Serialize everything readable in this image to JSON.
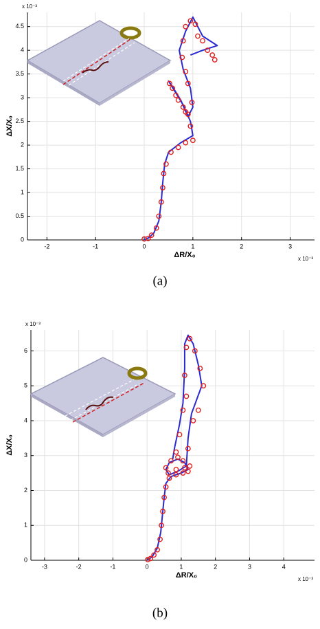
{
  "chart_data": [
    {
      "type": "line",
      "caption": "(a)",
      "xlabel": "ΔR/X₀",
      "ylabel": "ΔX/X₀",
      "x_exponent": "x 10⁻³",
      "y_exponent": "x 10⁻³",
      "xlim": [
        -2.4,
        3.5
      ],
      "ylim": [
        0,
        4.8
      ],
      "xticks": [
        -2,
        -1,
        0,
        1,
        2,
        3
      ],
      "yticks": [
        0,
        0.5,
        1,
        1.5,
        2,
        2.5,
        3,
        3.5,
        4,
        4.5
      ],
      "grid": true,
      "series": [
        {
          "mode": "line",
          "color": "#2a2ad0",
          "x": [
            0,
            0.1,
            0.2,
            0.3,
            0.35,
            0.38,
            0.42,
            0.5,
            0.75,
            1.0,
            0.95,
            0.8,
            0.62,
            0.5,
            0.6,
            0.75,
            0.9,
            1.0,
            0.95,
            0.8,
            0.72,
            0.85,
            1.0,
            1.1,
            1.2,
            1.5,
            1.2,
            0.95
          ],
          "values": [
            0,
            0.05,
            0.15,
            0.4,
            0.8,
            1.2,
            1.6,
            1.85,
            2.05,
            2.2,
            2.5,
            2.85,
            3.15,
            3.35,
            3.2,
            2.95,
            2.6,
            2.8,
            3.2,
            3.6,
            4.0,
            4.4,
            4.7,
            4.5,
            4.3,
            4.1,
            4.0,
            3.9
          ]
        },
        {
          "mode": "markers",
          "color": "#e02020",
          "x": [
            0,
            0.08,
            0.15,
            0.25,
            0.3,
            0.35,
            0.38,
            0.4,
            0.45,
            0.55,
            0.7,
            0.85,
            1.0,
            0.95,
            0.85,
            0.7,
            0.58,
            0.52,
            0.65,
            0.8,
            0.9,
            0.98,
            0.9,
            0.85,
            0.78,
            0.8,
            0.85,
            0.95,
            1.05,
            1.1,
            1.2,
            1.3,
            1.4,
            1.45
          ],
          "values": [
            0.02,
            0.03,
            0.1,
            0.25,
            0.5,
            0.8,
            1.1,
            1.4,
            1.6,
            1.85,
            1.95,
            2.05,
            2.1,
            2.4,
            2.7,
            2.95,
            3.2,
            3.3,
            3.05,
            2.8,
            2.65,
            2.9,
            3.3,
            3.55,
            3.85,
            4.2,
            4.5,
            4.62,
            4.55,
            4.3,
            4.2,
            4.0,
            3.9,
            3.8
          ]
        }
      ]
    },
    {
      "type": "line",
      "caption": "(b)",
      "xlabel": "ΔR/X₀",
      "ylabel": "ΔX/X₀",
      "x_exponent": "x 10⁻³",
      "y_exponent": "x 10⁻³",
      "xlim": [
        -3.4,
        4.9
      ],
      "ylim": [
        0,
        6.6
      ],
      "xticks": [
        -3,
        -2,
        -1,
        0,
        1,
        2,
        3,
        4
      ],
      "yticks": [
        0,
        1,
        2,
        3,
        4,
        5,
        6
      ],
      "grid": true,
      "series": [
        {
          "mode": "line",
          "color": "#2a2ad0",
          "x": [
            0,
            0.15,
            0.3,
            0.4,
            0.45,
            0.5,
            0.55,
            0.7,
            1.0,
            1.2,
            1.1,
            0.9,
            0.65,
            0.55,
            0.65,
            0.9,
            1.15,
            1.2,
            1.3,
            1.45,
            1.6,
            1.5,
            1.35,
            1.2,
            1.1,
            1.1,
            1.05,
            0.95,
            0.8,
            0.75
          ],
          "values": [
            0,
            0.1,
            0.35,
            0.8,
            1.3,
            1.8,
            2.2,
            2.4,
            2.5,
            2.6,
            2.8,
            2.9,
            2.8,
            2.6,
            2.45,
            2.55,
            2.7,
            3.5,
            4.2,
            4.6,
            5.0,
            5.6,
            6.2,
            6.45,
            6.2,
            5.5,
            4.5,
            3.9,
            3.2,
            2.9
          ]
        },
        {
          "mode": "markers",
          "color": "#e02020",
          "x": [
            0.02,
            0.1,
            0.2,
            0.3,
            0.38,
            0.42,
            0.46,
            0.5,
            0.55,
            0.65,
            0.85,
            1.05,
            1.2,
            1.25,
            1.05,
            0.9,
            0.7,
            0.55,
            0.62,
            0.85,
            1.1,
            1.2,
            1.35,
            1.5,
            1.65,
            1.55,
            1.4,
            1.25,
            1.15,
            1.1,
            1.15,
            1.05,
            0.95,
            0.85
          ],
          "values": [
            0.02,
            0.05,
            0.15,
            0.3,
            0.6,
            1.0,
            1.4,
            1.8,
            2.1,
            2.35,
            2.45,
            2.5,
            2.55,
            2.7,
            2.85,
            2.95,
            2.85,
            2.65,
            2.5,
            2.6,
            2.65,
            3.2,
            4.0,
            4.3,
            5.0,
            5.5,
            6.0,
            6.35,
            6.1,
            5.3,
            4.7,
            4.3,
            3.6,
            3.1
          ]
        }
      ]
    }
  ]
}
